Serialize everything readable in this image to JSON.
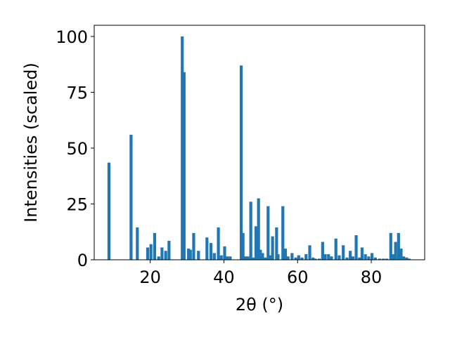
{
  "chart_data": {
    "type": "bar",
    "title": "",
    "xlabel": "2θ (°)",
    "ylabel": "Intensities (scaled)",
    "xlim": [
      4.8,
      94.5
    ],
    "ylim": [
      0,
      105
    ],
    "xticks": [
      20,
      40,
      60,
      80
    ],
    "yticks": [
      0,
      25,
      50,
      75,
      100
    ],
    "bar_width_deg": 0.8,
    "color": "#1f77b4",
    "grid": false,
    "legend": "none",
    "x": [
      8.8,
      14.8,
      16.5,
      19.3,
      20.2,
      21.2,
      22.3,
      23.2,
      24.2,
      25.1,
      28.7,
      29.2,
      30.4,
      30.9,
      31.8,
      33.1,
      35.4,
      36.5,
      37.4,
      38.5,
      39.3,
      40.2,
      40.9,
      41.7,
      44.7,
      45.2,
      45.8,
      46.5,
      47.3,
      47.9,
      48.7,
      49.4,
      49.9,
      50.5,
      51.3,
      52.0,
      52.7,
      53.2,
      54.3,
      54.7,
      56.0,
      56.7,
      57.4,
      58.5,
      59.5,
      60.3,
      61.2,
      62.3,
      63.3,
      64.2,
      64.8,
      65.9,
      66.8,
      67.5,
      68.4,
      69.2,
      70.4,
      71.3,
      72.4,
      73.4,
      74.3,
      75.0,
      75.9,
      76.8,
      77.5,
      78.4,
      79.3,
      80.2,
      81.1,
      82.3,
      83.3,
      84.2,
      85.3,
      85.9,
      86.6,
      87.4,
      88.1,
      88.8,
      89.6,
      90.3
    ],
    "values": [
      43.5,
      56.0,
      14.5,
      5.5,
      7.0,
      12.0,
      1.5,
      5.5,
      4.0,
      8.5,
      100.0,
      84.0,
      5.0,
      4.5,
      12.0,
      4.0,
      10.0,
      7.5,
      3.0,
      14.5,
      2.0,
      6.0,
      1.5,
      1.5,
      87.0,
      12.0,
      1.5,
      1.5,
      26.0,
      1.0,
      15.0,
      27.5,
      4.5,
      3.0,
      1.0,
      24.0,
      2.0,
      10.5,
      14.5,
      2.5,
      24.0,
      5.0,
      1.5,
      3.0,
      1.0,
      2.0,
      1.0,
      2.5,
      6.5,
      1.0,
      0.5,
      0.5,
      8.0,
      2.5,
      2.5,
      1.5,
      9.5,
      2.0,
      6.5,
      1.0,
      4.0,
      1.5,
      11.0,
      1.0,
      5.5,
      2.5,
      1.5,
      3.0,
      1.0,
      0.5,
      0.5,
      0.5,
      12.0,
      2.5,
      8.0,
      12.0,
      5.0,
      1.5,
      1.0,
      0.5
    ]
  }
}
